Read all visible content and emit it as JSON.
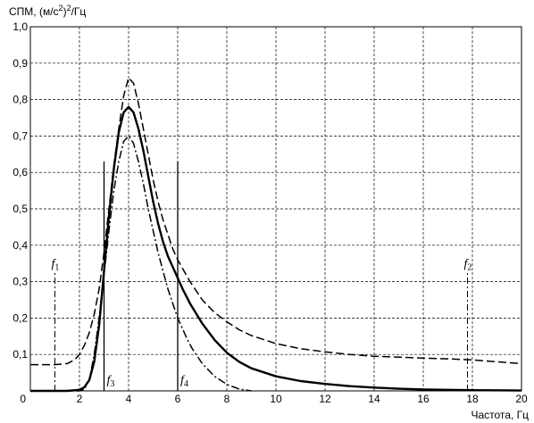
{
  "chart_data": {
    "type": "line",
    "ylabel_prefix": "СПМ, (м/с",
    "ylabel_sup": "2",
    "ylabel_suffix": ")",
    "ylabel_sup2": "2",
    "ylabel_tail": "/Гц",
    "xlabel": "Частота, Гц",
    "xlim": [
      0,
      20
    ],
    "ylim": [
      0,
      1.0
    ],
    "grid": true,
    "x_ticks": [
      {
        "value": 0,
        "label": "0"
      },
      {
        "value": 2,
        "label": "2"
      },
      {
        "value": 4,
        "label": "4"
      },
      {
        "value": 6,
        "label": "6"
      },
      {
        "value": 8,
        "label": "8"
      },
      {
        "value": 10,
        "label": "10"
      },
      {
        "value": 12,
        "label": "12"
      },
      {
        "value": 14,
        "label": "14"
      },
      {
        "value": 16,
        "label": "16"
      },
      {
        "value": 18,
        "label": "18"
      },
      {
        "value": 20,
        "label": "20"
      }
    ],
    "y_ticks": [
      {
        "value": 0.1,
        "label": "0,1"
      },
      {
        "value": 0.2,
        "label": "0,2"
      },
      {
        "value": 0.3,
        "label": "0,3"
      },
      {
        "value": 0.4,
        "label": "0,4"
      },
      {
        "value": 0.5,
        "label": "0,5"
      },
      {
        "value": 0.6,
        "label": "0,6"
      },
      {
        "value": 0.7,
        "label": "0,7"
      },
      {
        "value": 0.8,
        "label": "0,8"
      },
      {
        "value": 0.9,
        "label": "0,9"
      },
      {
        "value": 1.0,
        "label": "1,0"
      }
    ],
    "series": [
      {
        "style": "solid",
        "x": [
          0,
          1.5,
          2.0,
          2.2,
          2.4,
          2.6,
          2.8,
          3.0,
          3.2,
          3.4,
          3.6,
          3.8,
          4.0,
          4.2,
          4.4,
          4.6,
          4.8,
          5.0,
          5.2,
          5.4,
          5.6,
          5.8,
          6.0,
          6.2,
          6.5,
          7.0,
          7.5,
          8.0,
          8.5,
          9.0,
          10,
          11,
          12,
          13,
          14,
          15,
          16,
          18,
          20
        ],
        "y": [
          0,
          0,
          0.003,
          0.01,
          0.03,
          0.08,
          0.18,
          0.33,
          0.48,
          0.61,
          0.71,
          0.765,
          0.78,
          0.765,
          0.72,
          0.66,
          0.59,
          0.52,
          0.46,
          0.41,
          0.37,
          0.34,
          0.31,
          0.28,
          0.24,
          0.185,
          0.14,
          0.105,
          0.08,
          0.062,
          0.04,
          0.027,
          0.019,
          0.013,
          0.009,
          0.006,
          0.004,
          0.002,
          0.001
        ]
      },
      {
        "style": "dashed",
        "x": [
          0,
          0.5,
          1.0,
          1.5,
          1.8,
          2.0,
          2.2,
          2.4,
          2.6,
          2.8,
          3.0,
          3.2,
          3.4,
          3.6,
          3.8,
          4.0,
          4.2,
          4.4,
          4.6,
          4.8,
          5.0,
          5.2,
          5.4,
          5.6,
          5.8,
          6.0,
          6.5,
          7.0,
          7.5,
          8.0,
          8.5,
          9.0,
          10,
          11,
          12,
          13,
          14,
          16,
          17,
          18,
          19,
          20
        ],
        "y": [
          0.072,
          0.072,
          0.072,
          0.075,
          0.085,
          0.1,
          0.125,
          0.16,
          0.21,
          0.28,
          0.38,
          0.5,
          0.62,
          0.72,
          0.81,
          0.86,
          0.845,
          0.79,
          0.72,
          0.65,
          0.58,
          0.52,
          0.47,
          0.43,
          0.39,
          0.36,
          0.3,
          0.25,
          0.215,
          0.19,
          0.168,
          0.152,
          0.13,
          0.116,
          0.107,
          0.1,
          0.095,
          0.09,
          0.088,
          0.085,
          0.08,
          0.075
        ]
      },
      {
        "style": "dashdot",
        "x": [
          0,
          2.0,
          2.2,
          2.4,
          2.6,
          2.8,
          3.0,
          3.2,
          3.4,
          3.6,
          3.8,
          4.0,
          4.2,
          4.4,
          4.6,
          4.8,
          5.0,
          5.2,
          5.4,
          5.6,
          5.8,
          6.0,
          6.2,
          6.4,
          6.6,
          6.8,
          7.0,
          7.5,
          8.0,
          8.5,
          9.0
        ],
        "y": [
          0,
          0,
          0.005,
          0.03,
          0.1,
          0.2,
          0.32,
          0.44,
          0.55,
          0.63,
          0.685,
          0.7,
          0.68,
          0.63,
          0.57,
          0.5,
          0.44,
          0.38,
          0.33,
          0.28,
          0.24,
          0.2,
          0.17,
          0.14,
          0.115,
          0.095,
          0.075,
          0.04,
          0.018,
          0.005,
          0
        ]
      }
    ],
    "markers": [
      {
        "label": "f",
        "sub": "1",
        "x": 1.0,
        "y_top": 0.33,
        "style": "dashdot",
        "label_pos": "top"
      },
      {
        "label": "f",
        "sub": "2",
        "x": 17.8,
        "y_top": 0.33,
        "style": "dashdot",
        "label_pos": "top"
      },
      {
        "label": "f",
        "sub": "3",
        "x": 3.0,
        "y_top": 0.63,
        "style": "solid",
        "label_pos": "bottom"
      },
      {
        "label": "f",
        "sub": "4",
        "x": 6.0,
        "y_top": 0.63,
        "style": "solid",
        "label_pos": "bottom"
      }
    ]
  }
}
